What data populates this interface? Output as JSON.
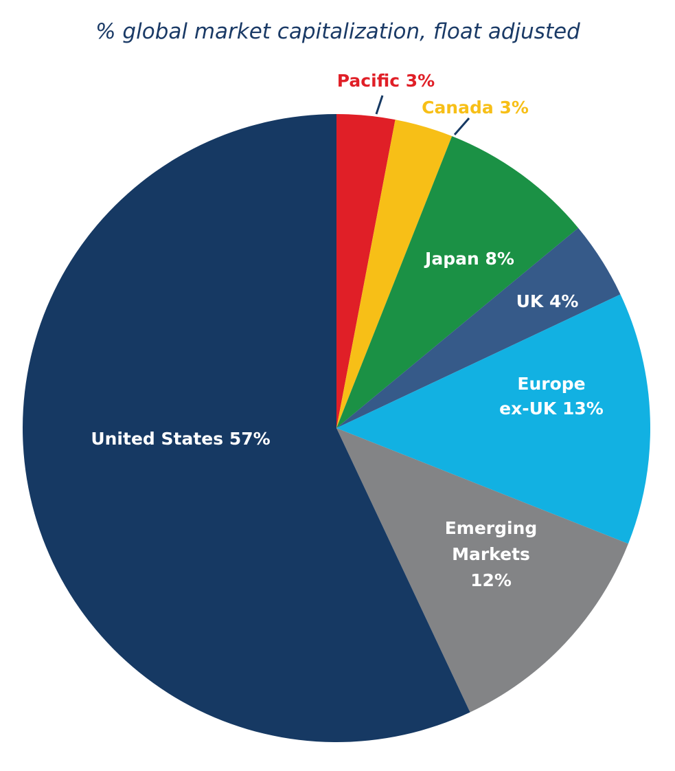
{
  "chart_data": {
    "type": "pie",
    "title": "% global market capitalization, float adjusted",
    "start_angle_deg": 0,
    "direction": "clockwise",
    "slices": [
      {
        "key": "pacific",
        "label_lines": [
          "Pacific 3%"
        ],
        "value": 3,
        "color": "#e01f27",
        "label_color": "#e01f27"
      },
      {
        "key": "canada",
        "label_lines": [
          "Canada 3%"
        ],
        "value": 3,
        "color": "#f7bf17",
        "label_color": "#f7bf17"
      },
      {
        "key": "japan",
        "label_lines": [
          "Japan 8%"
        ],
        "value": 8,
        "color": "#1b9145",
        "label_color": "#ffffff"
      },
      {
        "key": "uk",
        "label_lines": [
          "UK 4%"
        ],
        "value": 4,
        "color": "#365a89",
        "label_color": "#ffffff"
      },
      {
        "key": "europe",
        "label_lines": [
          "Europe",
          "ex-UK 13%"
        ],
        "value": 13,
        "color": "#12b1e2",
        "label_color": "#ffffff"
      },
      {
        "key": "emerging",
        "label_lines": [
          "Emerging",
          "Markets",
          "12%"
        ],
        "value": 12,
        "color": "#838486",
        "label_color": "#ffffff"
      },
      {
        "key": "us",
        "label_lines": [
          "United States 57%"
        ],
        "value": 57,
        "color": "#163963",
        "label_color": "#ffffff"
      }
    ],
    "leader_line_color": "#163963"
  }
}
